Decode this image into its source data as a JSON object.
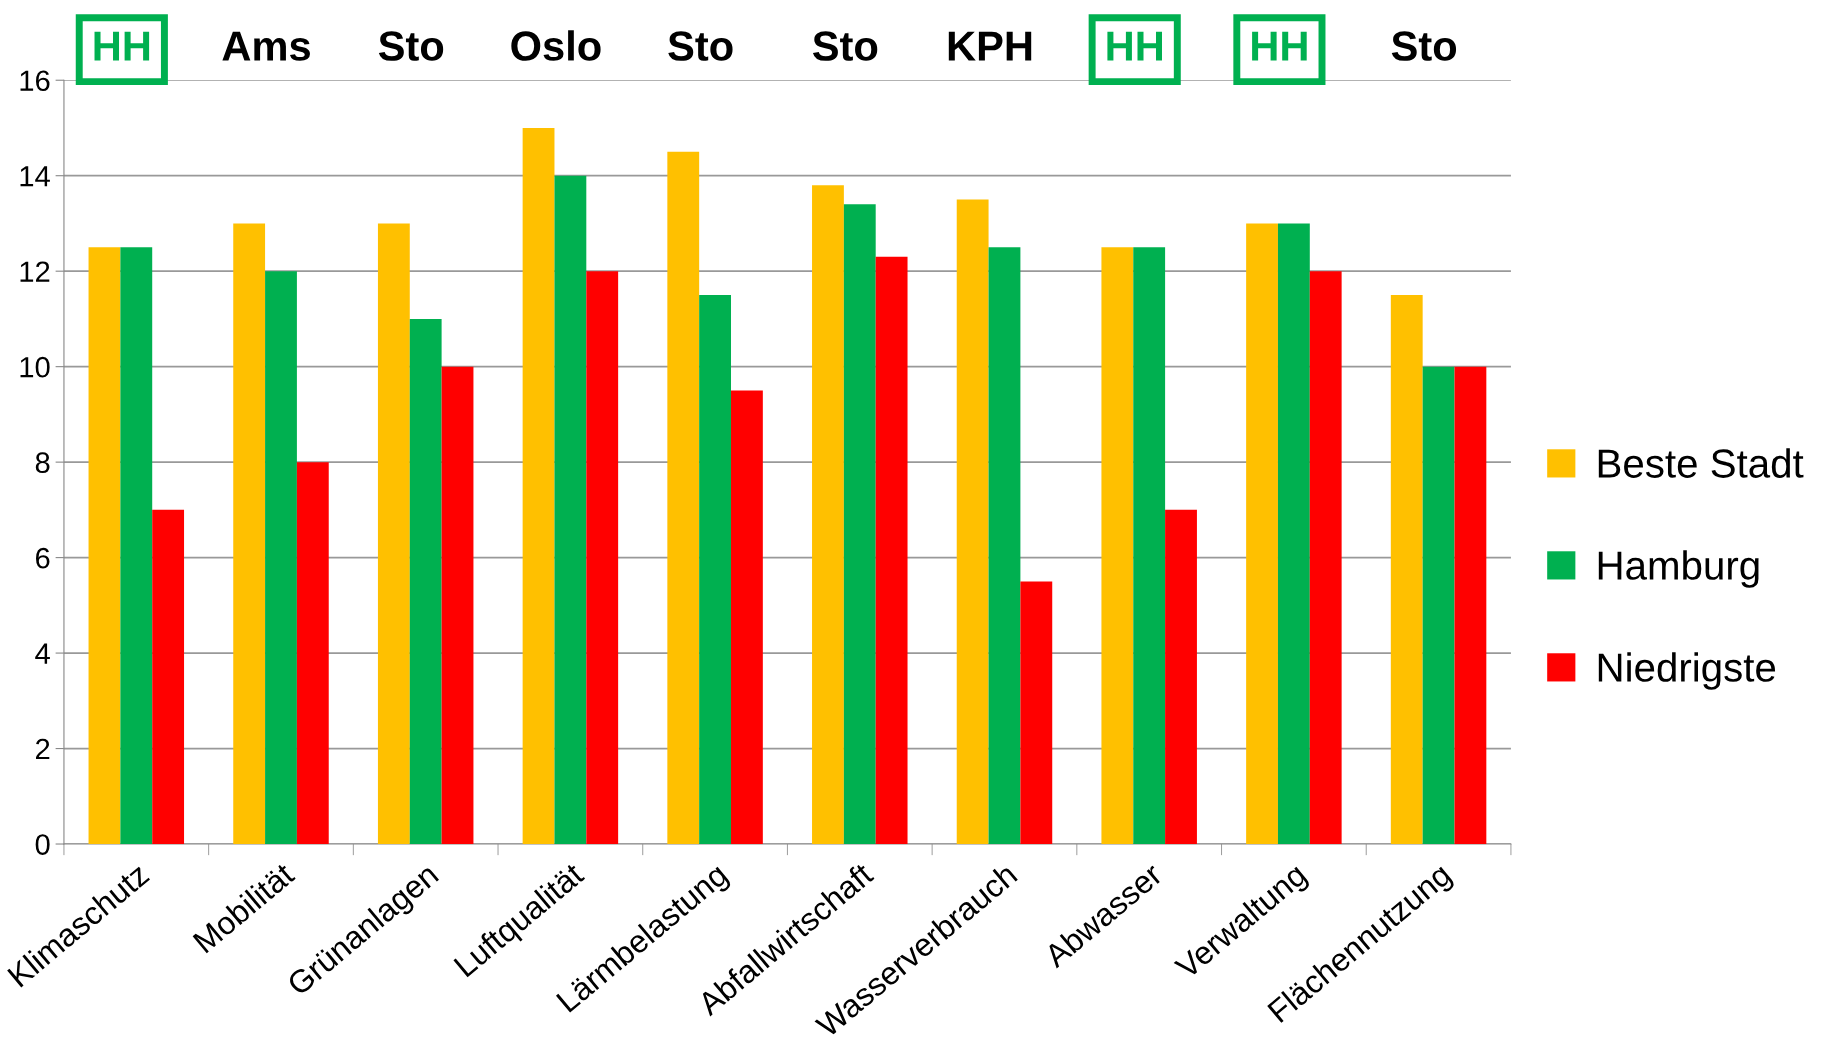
{
  "chart_data": {
    "type": "bar",
    "categories": [
      "Klimaschutz",
      "Mobilität",
      "Grünanlagen",
      "Luftqualität",
      "Lärmbelastung",
      "Abfallwirtschaft",
      "Wasserverbrauch",
      "Abwasser",
      "Verwaltung",
      "Flächennutzung"
    ],
    "series": [
      {
        "name": "Beste Stadt",
        "color": "#ffc000",
        "values": [
          12.5,
          13,
          13,
          15,
          14.5,
          13.8,
          13.5,
          12.5,
          13,
          11.5
        ]
      },
      {
        "name": "Hamburg",
        "color": "#00b050",
        "values": [
          12.5,
          12,
          11,
          14,
          11.5,
          13.4,
          12.5,
          12.5,
          13,
          10
        ]
      },
      {
        "name": "Niedrigste",
        "color": "#ff0000",
        "values": [
          7,
          8,
          10,
          12,
          9.5,
          12.3,
          5.5,
          7,
          12,
          10
        ]
      }
    ],
    "annotations": [
      "HH",
      "Ams",
      "Sto",
      "Oslo",
      "Sto",
      "Sto",
      "KPH",
      "HH",
      "HH",
      "Sto"
    ],
    "ylim": [
      0,
      16
    ],
    "yticks": [
      0,
      2,
      4,
      6,
      8,
      10,
      12,
      14,
      16
    ],
    "grid": "y",
    "legend": "right"
  }
}
